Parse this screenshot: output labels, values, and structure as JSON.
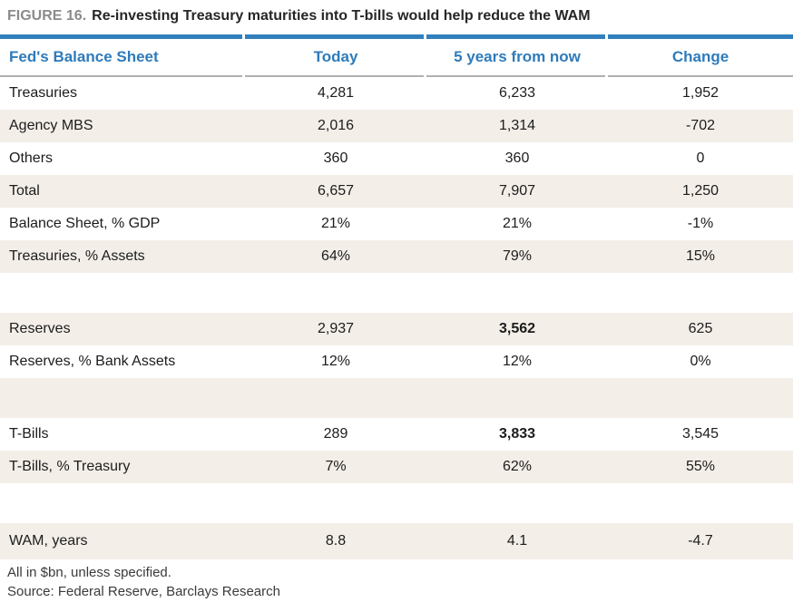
{
  "figure": {
    "label": "FIGURE 16.",
    "title": "Re-investing Treasury maturities into T-bills would help reduce the WAM"
  },
  "colors": {
    "accent_blue": "#3180bd",
    "header_text_blue": "#2e7bbb",
    "stripe_beige": "#f3eee8",
    "header_rule_gray": "#b0b0b0",
    "figure_label_gray": "#8b8b8b",
    "body_text": "#1c1c1c"
  },
  "table": {
    "columns": [
      "Fed's Balance Sheet",
      "Today",
      "5 years from now",
      "Change"
    ],
    "rows": [
      {
        "label": "Treasuries",
        "today": "4,281",
        "five": "6,233",
        "change": "1,952"
      },
      {
        "label": "Agency MBS",
        "today": "2,016",
        "five": "1,314",
        "change": "-702"
      },
      {
        "label": "Others",
        "today": "360",
        "five": "360",
        "change": "0"
      },
      {
        "label": "Total",
        "today": "6,657",
        "five": "7,907",
        "change": "1,250"
      },
      {
        "label": "Balance Sheet, % GDP",
        "today": "21%",
        "five": "21%",
        "change": "-1%"
      },
      {
        "label": "Treasuries, % Assets",
        "today": "64%",
        "five": "79%",
        "change": "15%"
      },
      {
        "label": "",
        "today": "",
        "five": "",
        "change": ""
      },
      {
        "label": "Reserves",
        "today": "2,937",
        "five": "3,562",
        "change": "625"
      },
      {
        "label": "Reserves, % Bank Assets",
        "today": "12%",
        "five": "12%",
        "change": "0%"
      },
      {
        "label": "",
        "today": "",
        "five": "",
        "change": ""
      },
      {
        "label": "T-Bills",
        "today": "289",
        "five": "3,833",
        "change": "3,545"
      },
      {
        "label": "T-Bills, % Treasury",
        "today": "7%",
        "five": "62%",
        "change": "55%"
      },
      {
        "label": "",
        "today": "",
        "five": "",
        "change": ""
      },
      {
        "label": "WAM, years",
        "today": "8.8",
        "five": "4.1",
        "change": "-4.7"
      }
    ]
  },
  "footnotes": [
    "All in $bn, unless specified.",
    "Source: Federal Reserve, Barclays Research"
  ],
  "chart_data": {
    "type": "table",
    "title": "FIGURE 16. Re-investing Treasury maturities into T-bills would help reduce the WAM",
    "columns": [
      "Fed's Balance Sheet",
      "Today",
      "5 years from now",
      "Change"
    ],
    "rows": [
      [
        "Treasuries",
        4281,
        6233,
        1952
      ],
      [
        "Agency MBS",
        2016,
        1314,
        -702
      ],
      [
        "Others",
        360,
        360,
        0
      ],
      [
        "Total",
        6657,
        7907,
        1250
      ],
      [
        "Balance Sheet, % GDP",
        "21%",
        "21%",
        "-1%"
      ],
      [
        "Treasuries, % Assets",
        "64%",
        "79%",
        "15%"
      ],
      [
        "Reserves",
        2937,
        3562,
        625
      ],
      [
        "Reserves, % Bank Assets",
        "12%",
        "12%",
        "0%"
      ],
      [
        "T-Bills",
        289,
        3833,
        3545
      ],
      [
        "T-Bills, % Treasury",
        "7%",
        "62%",
        "55%"
      ],
      [
        "WAM, years",
        8.8,
        4.1,
        -4.7
      ]
    ],
    "emphasized_cells": [
      [
        "Reserves",
        "5 years from now"
      ],
      [
        "T-Bills",
        "5 years from now"
      ]
    ],
    "units_note": "All in $bn, unless specified.",
    "source": "Source: Federal Reserve, Barclays Research"
  }
}
